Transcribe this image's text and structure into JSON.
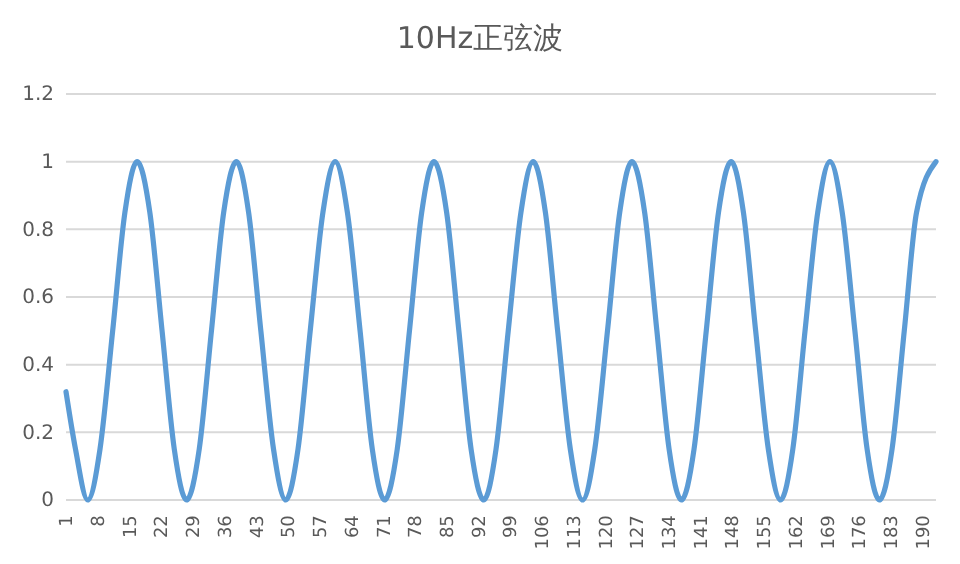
{
  "chart_data": {
    "type": "line",
    "title": "10Hz正弦波",
    "grid": "y",
    "xlim": [
      1,
      193
    ],
    "xticks": [
      1,
      8,
      15,
      22,
      29,
      36,
      43,
      50,
      57,
      64,
      71,
      78,
      85,
      92,
      99,
      106,
      113,
      120,
      127,
      134,
      141,
      148,
      155,
      162,
      169,
      176,
      183,
      190
    ],
    "ylim": [
      0,
      1.2
    ],
    "yticks": [
      0,
      0.2,
      0.4,
      0.6,
      0.8,
      1,
      1.2
    ],
    "series": [
      {
        "color": "#5b9bd5",
        "x": [
          1,
          3.1,
          5.8,
          8.5,
          11.3,
          14.0,
          16.7,
          19.5,
          22.2,
          24.9,
          27.6,
          30.4,
          33.1,
          35.8,
          38.6,
          41.3,
          44.0,
          46.8,
          49.5,
          52.2,
          54.9,
          57.7,
          60.4,
          63.1,
          65.9,
          68.6,
          71.3,
          74.1,
          76.8,
          79.5,
          82.2,
          85.0,
          87.7,
          90.4,
          93.2,
          95.9,
          98.6,
          101.4,
          104.1,
          106.8,
          109.5,
          112.3,
          115.0,
          117.7,
          120.5,
          123.2,
          125.9,
          128.7,
          131.4,
          134.1,
          136.8,
          139.6,
          142.3,
          145.0,
          147.8,
          150.5,
          153.2,
          156.0,
          158.7,
          161.4,
          164.1,
          166.9,
          169.6,
          172.3,
          175.1,
          177.8,
          180.5,
          183.3,
          186.0,
          188.7,
          193
        ],
        "values": [
          0.32,
          0.15,
          0,
          0.15,
          0.5,
          0.85,
          1,
          0.85,
          0.5,
          0.15,
          0,
          0.15,
          0.5,
          0.85,
          1,
          0.85,
          0.5,
          0.15,
          0,
          0.15,
          0.5,
          0.85,
          1,
          0.85,
          0.5,
          0.15,
          0,
          0.15,
          0.5,
          0.85,
          1,
          0.85,
          0.5,
          0.15,
          0,
          0.15,
          0.5,
          0.85,
          1,
          0.85,
          0.5,
          0.15,
          0,
          0.15,
          0.5,
          0.85,
          1,
          0.85,
          0.5,
          0.15,
          0,
          0.15,
          0.5,
          0.85,
          1,
          0.85,
          0.5,
          0.15,
          0,
          0.15,
          0.5,
          0.85,
          1,
          0.85,
          0.5,
          0.15,
          0,
          0.15,
          0.5,
          0.85,
          1
        ]
      }
    ]
  }
}
